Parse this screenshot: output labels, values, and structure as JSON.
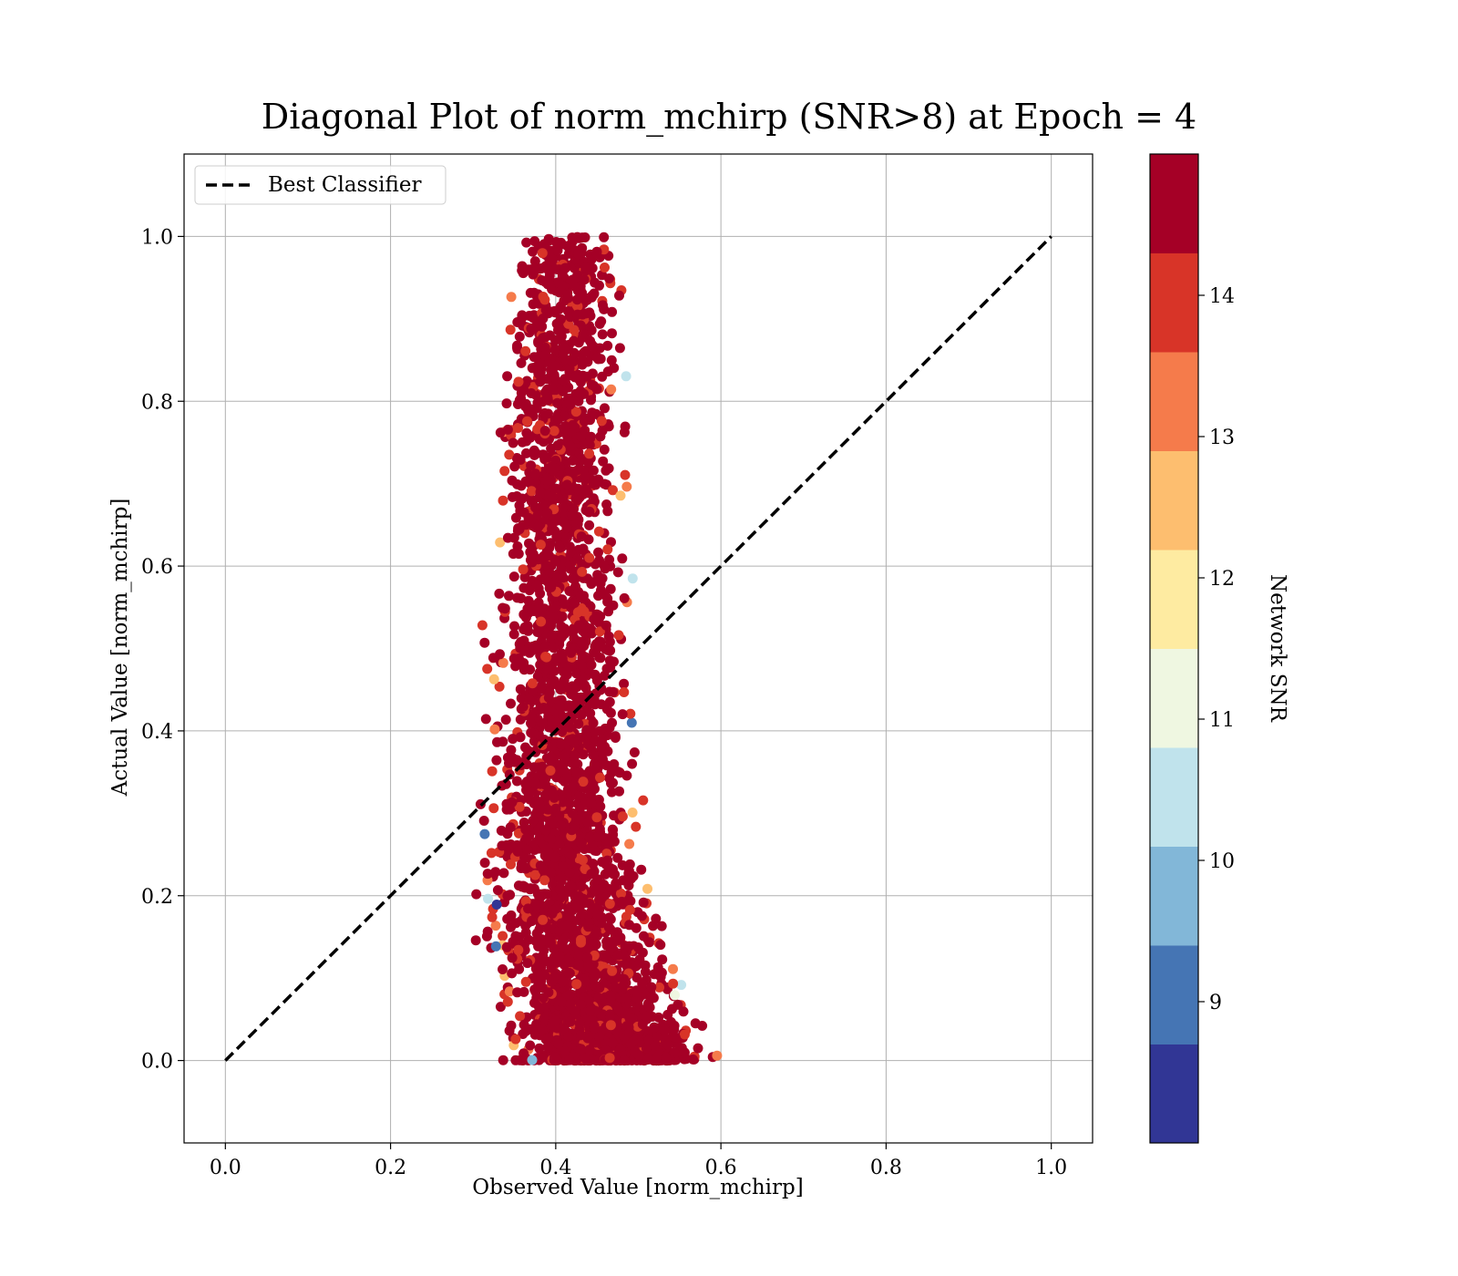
{
  "chart_data": {
    "type": "scatter",
    "title": "Diagonal Plot of norm_mchirp (SNR>8) at Epoch = 4",
    "xlabel": "Observed Value [norm_mchirp]",
    "ylabel": "Actual Value [norm_mchirp]",
    "xlim": [
      -0.05,
      1.05
    ],
    "ylim": [
      -0.1,
      1.1
    ],
    "x_ticks": [
      0.0,
      0.2,
      0.4,
      0.6,
      0.8,
      1.0
    ],
    "y_ticks": [
      0.0,
      0.2,
      0.4,
      0.6,
      0.8,
      1.0
    ],
    "x_tick_labels": [
      "0.0",
      "0.2",
      "0.4",
      "0.6",
      "0.8",
      "1.0"
    ],
    "y_tick_labels": [
      "0.0",
      "0.2",
      "0.4",
      "0.6",
      "0.8",
      "1.0"
    ],
    "grid": true,
    "legend": {
      "position": "upper-left",
      "entries": [
        "Best Classifier"
      ]
    },
    "reference_line": {
      "name": "Best Classifier",
      "style": "dashed",
      "color": "#000000",
      "points": [
        [
          0.0,
          0.0
        ],
        [
          1.0,
          1.0
        ]
      ]
    },
    "scatter_series": {
      "color_variable": "Network SNR",
      "count": 3500,
      "envelope": [
        {
          "y": 0.0,
          "x_min": 0.32,
          "x_max": 0.62
        },
        {
          "y": 0.05,
          "x_min": 0.31,
          "x_max": 0.6
        },
        {
          "y": 0.1,
          "x_min": 0.3,
          "x_max": 0.58
        },
        {
          "y": 0.2,
          "x_min": 0.29,
          "x_max": 0.54
        },
        {
          "y": 0.3,
          "x_min": 0.29,
          "x_max": 0.52
        },
        {
          "y": 0.4,
          "x_min": 0.3,
          "x_max": 0.51
        },
        {
          "y": 0.5,
          "x_min": 0.3,
          "x_max": 0.51
        },
        {
          "y": 0.6,
          "x_min": 0.31,
          "x_max": 0.5
        },
        {
          "y": 0.7,
          "x_min": 0.31,
          "x_max": 0.5
        },
        {
          "y": 0.8,
          "x_min": 0.31,
          "x_max": 0.5
        },
        {
          "y": 0.9,
          "x_min": 0.32,
          "x_max": 0.5
        },
        {
          "y": 1.0,
          "x_min": 0.33,
          "x_max": 0.49
        }
      ],
      "center_x": 0.42
    },
    "colorbar": {
      "label": "Network SNR",
      "range": [
        8.0,
        15.0
      ],
      "tick_values": [
        9,
        10,
        11,
        12,
        13,
        14
      ],
      "tick_labels": [
        "9",
        "10",
        "11",
        "12",
        "13",
        "14"
      ],
      "bins": [
        {
          "from": 8.0,
          "to": 8.7,
          "color": "#313695"
        },
        {
          "from": 8.7,
          "to": 9.4,
          "color": "#4575b4"
        },
        {
          "from": 9.4,
          "to": 10.1,
          "color": "#82b7d8"
        },
        {
          "from": 10.1,
          "to": 10.8,
          "color": "#c0e3ec"
        },
        {
          "from": 10.8,
          "to": 11.5,
          "color": "#eff7e1"
        },
        {
          "from": 11.5,
          "to": 12.2,
          "color": "#feeba1"
        },
        {
          "from": 12.2,
          "to": 12.9,
          "color": "#fdbe6f"
        },
        {
          "from": 12.9,
          "to": 13.6,
          "color": "#f57b4b"
        },
        {
          "from": 13.6,
          "to": 14.3,
          "color": "#d83428"
        },
        {
          "from": 14.3,
          "to": 15.0,
          "color": "#a50026"
        }
      ]
    }
  }
}
